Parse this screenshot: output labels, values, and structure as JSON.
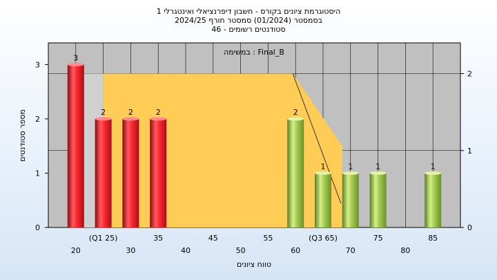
{
  "chart_data": {
    "type": "bar",
    "title_lines": [
      "היסטוגרמת ציונים בקורס - חשבון דיפרנציאלי ואינטגרלי 1",
      "בסמסטר  (01/2024)  סמסטר חורף 2024/25",
      "סטודנטים רשומים - 46"
    ],
    "annotation": "במשימה : Final_B",
    "xlabel": "טווח ציונים",
    "ylabel": "מספר סטודנטים",
    "x_ticks_row1": [
      "20",
      "30",
      "40",
      "50",
      "60",
      "70",
      "80"
    ],
    "x_ticks_row1_values": [
      20,
      30,
      40,
      50,
      60,
      70,
      80
    ],
    "x_ticks_row2": [
      "(Q1 25)",
      "35",
      "45",
      "55",
      "(Q3 65)",
      "75",
      "85"
    ],
    "x_ticks_row2_values": [
      25,
      35,
      45,
      55,
      65,
      75,
      85
    ],
    "xlim": [
      15,
      90
    ],
    "ylim_left": [
      0,
      3.4
    ],
    "yticks_left": [
      0,
      1,
      2,
      3
    ],
    "ylim_right": [
      0,
      2.4
    ],
    "yticks_right": [
      0,
      1,
      2
    ],
    "bars": [
      {
        "x": 20,
        "value": 3,
        "label": "3",
        "color": "red"
      },
      {
        "x": 25,
        "value": 2,
        "label": "2",
        "color": "red"
      },
      {
        "x": 30,
        "value": 2,
        "label": "2",
        "color": "red"
      },
      {
        "x": 35,
        "value": 2,
        "label": "2",
        "color": "red"
      },
      {
        "x": 60,
        "value": 2,
        "label": "2",
        "color": "green"
      },
      {
        "x": 65,
        "value": 1,
        "label": "1",
        "color": "green"
      },
      {
        "x": 70,
        "value": 1,
        "label": "1",
        "color": "green"
      },
      {
        "x": 75,
        "value": 1,
        "label": "1",
        "color": "green"
      },
      {
        "x": 85,
        "value": 1,
        "label": "1",
        "color": "green"
      }
    ],
    "box_area": {
      "q1": 25,
      "q3": 65,
      "median_start": 59.5,
      "top": 2.0,
      "whisker_end": 68.5,
      "color": "#ffcc55"
    },
    "colors": {
      "plot_bg": "#c0c0c0",
      "red_bar": "#e8202a",
      "green_bar": "#98c24a"
    }
  }
}
